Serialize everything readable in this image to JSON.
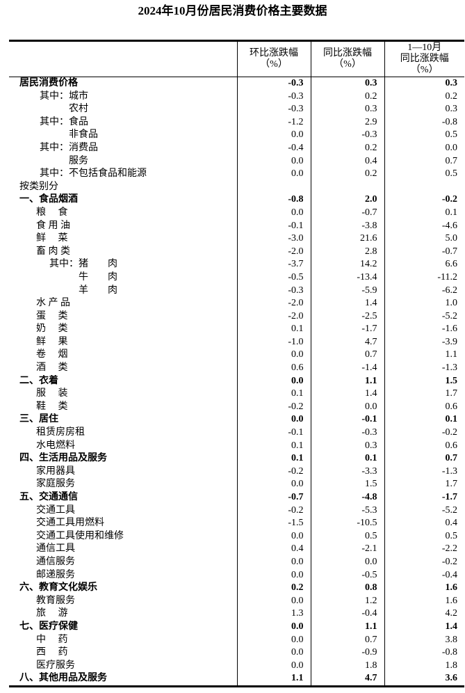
{
  "page": {
    "background": "#ffffff",
    "text_color": "#000000",
    "border_color": "#000000"
  },
  "title": "2024年10月份居民消费价格主要数据",
  "table": {
    "header": {
      "stub": "",
      "col1_lines": [
        "环比涨跌幅",
        "（%）"
      ],
      "col2_lines": [
        "同比涨跌幅",
        "（%）"
      ],
      "col3_lines": [
        "1—10月",
        "同比涨跌幅",
        "（%）"
      ]
    },
    "rows": [
      {
        "label": "居民消费价格",
        "indent": 0,
        "bold": true,
        "values": [
          "-0.3",
          "0.3",
          "0.3"
        ]
      },
      {
        "label": "其中：城市",
        "indent": 1,
        "bold": false,
        "values": [
          "-0.3",
          "0.2",
          "0.2"
        ]
      },
      {
        "label": "农村",
        "indent": 2,
        "bold": false,
        "values": [
          "-0.3",
          "0.3",
          "0.3"
        ]
      },
      {
        "label": "其中：食品",
        "indent": 1,
        "bold": false,
        "values": [
          "-1.2",
          "2.9",
          "-0.8"
        ]
      },
      {
        "label": "非食品",
        "indent": 2,
        "bold": false,
        "values": [
          "0.0",
          "-0.3",
          "0.5"
        ]
      },
      {
        "label": "其中：消费品",
        "indent": 1,
        "bold": false,
        "values": [
          "-0.4",
          "0.2",
          "0.0"
        ]
      },
      {
        "label": "服务",
        "indent": 2,
        "bold": false,
        "values": [
          "0.0",
          "0.4",
          "0.7"
        ]
      },
      {
        "label": "其中：不包括食品和能源",
        "indent": 1,
        "bold": false,
        "values": [
          "0.0",
          "0.2",
          "0.5"
        ]
      },
      {
        "label": "按类别分",
        "indent": 0,
        "bold": false,
        "values": [
          "",
          "",
          ""
        ]
      },
      {
        "label": "一、食品烟酒",
        "indent": 0,
        "bold": true,
        "values": [
          "-0.8",
          "2.0",
          "-0.2"
        ]
      },
      {
        "label": "粮　 食",
        "indent": 3,
        "bold": false,
        "values": [
          "0.0",
          "-0.7",
          "0.1"
        ]
      },
      {
        "label": "食 用 油",
        "indent": 3,
        "bold": false,
        "values": [
          "-0.1",
          "-3.8",
          "-4.6"
        ]
      },
      {
        "label": "鲜　 菜",
        "indent": 3,
        "bold": false,
        "values": [
          "-3.0",
          "21.6",
          "5.0"
        ]
      },
      {
        "label": "畜 肉 类",
        "indent": 3,
        "bold": false,
        "values": [
          "-2.0",
          "2.8",
          "-0.7"
        ]
      },
      {
        "label": "其中：猪　　肉",
        "indent": 4,
        "bold": false,
        "values": [
          "-3.7",
          "14.2",
          "6.6"
        ]
      },
      {
        "label": "牛　　肉",
        "indent": 5,
        "bold": false,
        "values": [
          "-0.5",
          "-13.4",
          "-11.2"
        ]
      },
      {
        "label": "羊　　肉",
        "indent": 5,
        "bold": false,
        "values": [
          "-0.3",
          "-5.9",
          "-6.2"
        ]
      },
      {
        "label": "水 产 品",
        "indent": 3,
        "bold": false,
        "values": [
          "-2.0",
          "1.4",
          "1.0"
        ]
      },
      {
        "label": "蛋　 类",
        "indent": 3,
        "bold": false,
        "values": [
          "-2.0",
          "-2.5",
          "-5.2"
        ]
      },
      {
        "label": "奶　 类",
        "indent": 3,
        "bold": false,
        "values": [
          "0.1",
          "-1.7",
          "-1.6"
        ]
      },
      {
        "label": "鲜　 果",
        "indent": 3,
        "bold": false,
        "values": [
          "-1.0",
          "4.7",
          "-3.9"
        ]
      },
      {
        "label": "卷　 烟",
        "indent": 3,
        "bold": false,
        "values": [
          "0.0",
          "0.7",
          "1.1"
        ]
      },
      {
        "label": "酒　 类",
        "indent": 3,
        "bold": false,
        "values": [
          "0.6",
          "-1.4",
          "-1.3"
        ]
      },
      {
        "label": "二、衣着",
        "indent": 0,
        "bold": true,
        "values": [
          "0.0",
          "1.1",
          "1.5"
        ]
      },
      {
        "label": "服　 装",
        "indent": 3,
        "bold": false,
        "values": [
          "0.1",
          "1.4",
          "1.7"
        ]
      },
      {
        "label": "鞋　 类",
        "indent": 3,
        "bold": false,
        "values": [
          "-0.2",
          "0.0",
          "0.6"
        ]
      },
      {
        "label": "三、居住",
        "indent": 0,
        "bold": true,
        "values": [
          "0.0",
          "-0.1",
          "0.1"
        ]
      },
      {
        "label": "租赁房房租",
        "indent": 3,
        "bold": false,
        "values": [
          "-0.1",
          "-0.3",
          "-0.2"
        ]
      },
      {
        "label": "水电燃料",
        "indent": 3,
        "bold": false,
        "values": [
          "0.1",
          "0.3",
          "0.6"
        ]
      },
      {
        "label": "四、生活用品及服务",
        "indent": 0,
        "bold": true,
        "values": [
          "0.1",
          "0.1",
          "0.7"
        ]
      },
      {
        "label": "家用器具",
        "indent": 3,
        "bold": false,
        "values": [
          "-0.2",
          "-3.3",
          "-1.3"
        ]
      },
      {
        "label": "家庭服务",
        "indent": 3,
        "bold": false,
        "values": [
          "0.0",
          "1.5",
          "1.7"
        ]
      },
      {
        "label": "五、交通通信",
        "indent": 0,
        "bold": true,
        "values": [
          "-0.7",
          "-4.8",
          "-1.7"
        ]
      },
      {
        "label": "交通工具",
        "indent": 3,
        "bold": false,
        "values": [
          "-0.2",
          "-5.3",
          "-5.2"
        ]
      },
      {
        "label": "交通工具用燃料",
        "indent": 3,
        "bold": false,
        "values": [
          "-1.5",
          "-10.5",
          "0.4"
        ]
      },
      {
        "label": "交通工具使用和维修",
        "indent": 3,
        "bold": false,
        "values": [
          "0.0",
          "0.5",
          "0.5"
        ]
      },
      {
        "label": "通信工具",
        "indent": 3,
        "bold": false,
        "values": [
          "0.4",
          "-2.1",
          "-2.2"
        ]
      },
      {
        "label": "通信服务",
        "indent": 3,
        "bold": false,
        "values": [
          "0.0",
          "0.0",
          "-0.2"
        ]
      },
      {
        "label": "邮递服务",
        "indent": 3,
        "bold": false,
        "values": [
          "0.0",
          "-0.5",
          "-0.4"
        ]
      },
      {
        "label": "六、教育文化娱乐",
        "indent": 0,
        "bold": true,
        "values": [
          "0.2",
          "0.8",
          "1.6"
        ]
      },
      {
        "label": "教育服务",
        "indent": 3,
        "bold": false,
        "values": [
          "0.0",
          "1.2",
          "1.6"
        ]
      },
      {
        "label": "旅　 游",
        "indent": 3,
        "bold": false,
        "values": [
          "1.3",
          "-0.4",
          "4.2"
        ]
      },
      {
        "label": "七、医疗保健",
        "indent": 0,
        "bold": true,
        "values": [
          "0.0",
          "1.1",
          "1.4"
        ]
      },
      {
        "label": "中　 药",
        "indent": 3,
        "bold": false,
        "values": [
          "0.0",
          "0.7",
          "3.8"
        ]
      },
      {
        "label": "西　 药",
        "indent": 3,
        "bold": false,
        "values": [
          "0.0",
          "-0.9",
          "-0.8"
        ]
      },
      {
        "label": "医疗服务",
        "indent": 3,
        "bold": false,
        "values": [
          "0.0",
          "1.8",
          "1.8"
        ]
      },
      {
        "label": "八、其他用品及服务",
        "indent": 0,
        "bold": true,
        "values": [
          "1.1",
          "4.7",
          "3.6"
        ]
      }
    ]
  }
}
